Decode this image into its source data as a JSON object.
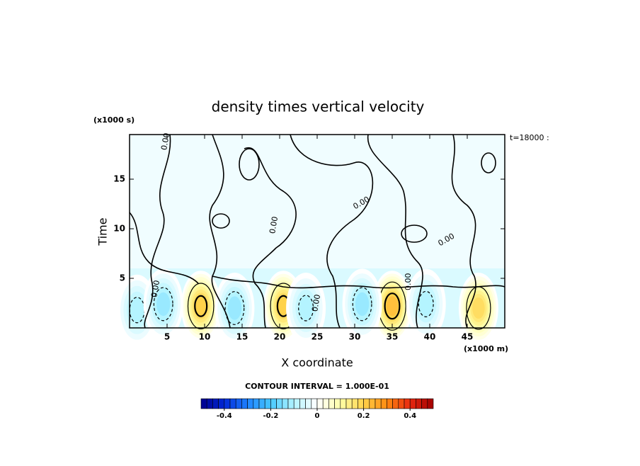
{
  "chart_data": {
    "type": "contour",
    "title": "density times vertical velocity",
    "x_label": "X coordinate",
    "y_label": "Time",
    "x_unit": "(x1000 m)",
    "y_unit": "(x1000 s)",
    "time_note": "t=18000 :",
    "contour_interval": "CONTOUR INTERVAL = 1.000E-01",
    "contour_label": "0.00",
    "xlim": [
      0,
      50
    ],
    "xticks": [
      5,
      10,
      15,
      20,
      25,
      30,
      35,
      40,
      45
    ],
    "ylim": [
      0,
      19.5
    ],
    "yticks": [
      5,
      10,
      15
    ],
    "extrema": {
      "x": [
        9.5,
        20.5,
        35,
        46.5,
        1,
        4.5,
        14,
        23.5,
        31,
        39.5
      ],
      "y": [
        2.2,
        2.2,
        2.2,
        2.0,
        1.8,
        2.4,
        2.0,
        2.0,
        2.4,
        2.4
      ],
      "values": [
        0.22,
        0.22,
        0.24,
        0.18,
        -0.12,
        -0.14,
        -0.14,
        -0.12,
        -0.14,
        -0.12
      ]
    },
    "clim": [
      -0.5,
      0.5
    ],
    "level_step": 0.025,
    "cticks": [
      -0.4,
      -0.2,
      0,
      0.2,
      0.4
    ],
    "colormap": [
      "#00008b",
      "#0028d8",
      "#1e82ff",
      "#46c8ff",
      "#b4f4ff",
      "#ffffff",
      "#ffffa8",
      "#ffd24a",
      "#ff8a10",
      "#e82810",
      "#a00000"
    ]
  }
}
